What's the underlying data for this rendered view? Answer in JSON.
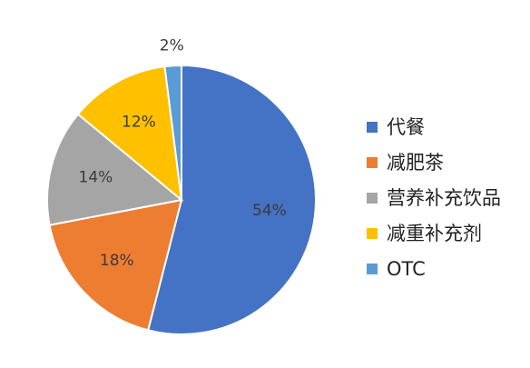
{
  "chart_data": {
    "type": "pie",
    "title": "",
    "legend_position": "right",
    "start_angle": "12 o'clock",
    "direction": "clockwise",
    "slices": [
      {
        "label": "代餐",
        "value": 54,
        "value_label": "54%",
        "color": "#4472C4"
      },
      {
        "label": "减肥茶",
        "value": 18,
        "value_label": "18%",
        "color": "#ED7D31"
      },
      {
        "label": "营养补充饮品",
        "value": 14,
        "value_label": "14%",
        "color": "#A5A5A5"
      },
      {
        "label": "减重补充剂",
        "value": 12,
        "value_label": "12%",
        "color": "#FFC000"
      },
      {
        "label": "OTC",
        "value": 2,
        "value_label": "2%",
        "color": "#5B9BD5"
      }
    ]
  }
}
